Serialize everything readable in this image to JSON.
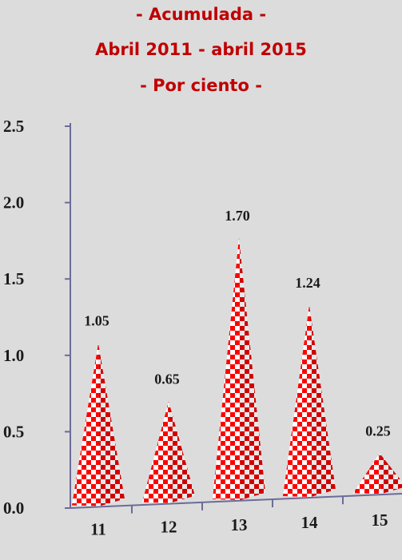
{
  "chart_data": {
    "type": "bar",
    "title_lines": [
      "- Acumulada -",
      "Abril 2011 - abril 2015",
      "- Por ciento -"
    ],
    "categories": [
      "11",
      "12",
      "13",
      "14",
      "15"
    ],
    "values": [
      1.05,
      0.65,
      1.7,
      1.24,
      0.25
    ],
    "data_labels": [
      "1.05",
      "0.65",
      "1.70",
      "1.24",
      "0.25"
    ],
    "y_ticks": [
      0.0,
      0.5,
      1.0,
      1.5,
      2.0,
      2.5
    ],
    "y_tick_labels": [
      "0.0",
      "0.5",
      "1.0",
      "1.5",
      "2.0",
      "2.5"
    ],
    "ylim": [
      0,
      2.5
    ],
    "bar_shape": "pyramid",
    "bar_pattern": "red-white-checkerboard",
    "grid": false,
    "colors": {
      "title": "#c00000",
      "bar": "#ff0000",
      "axis": "#6b6b9a",
      "background": "#dcdcdc"
    }
  }
}
